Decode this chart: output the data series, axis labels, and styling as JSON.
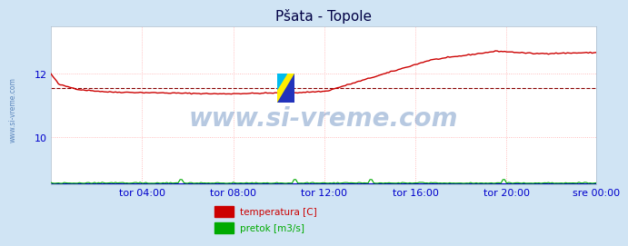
{
  "title": "Pšata - Topole",
  "bg_color": "#d0e4f4",
  "plot_bg_color": "#ffffff",
  "grid_color": "#ffaaaa",
  "ylabel_color": "#0000cc",
  "xlabel_color": "#0000cc",
  "title_color": "#000044",
  "watermark_text": "www.si-vreme.com",
  "watermark_color": "#3366aa",
  "watermark_alpha": 0.35,
  "side_watermark_color": "#3366aa",
  "ylim": [
    8.5,
    13.5
  ],
  "yticks": [
    10,
    12
  ],
  "x_labels": [
    "tor 04:00",
    "tor 08:00",
    "tor 12:00",
    "tor 16:00",
    "tor 20:00",
    "sre 00:00"
  ],
  "n_points": 288,
  "temp_color": "#cc0000",
  "flow_color": "#00aa00",
  "avg_line_color": "#880000",
  "avg_line_value": 11.55,
  "blue_baseline": 8.52,
  "legend_temp_label": "temperatura [C]",
  "legend_flow_label": "pretok [m3/s]",
  "legend_temp_color": "#cc0000",
  "legend_flow_color": "#00aa00",
  "title_fontsize": 11,
  "tick_fontsize": 8,
  "watermark_fontsize": 20
}
